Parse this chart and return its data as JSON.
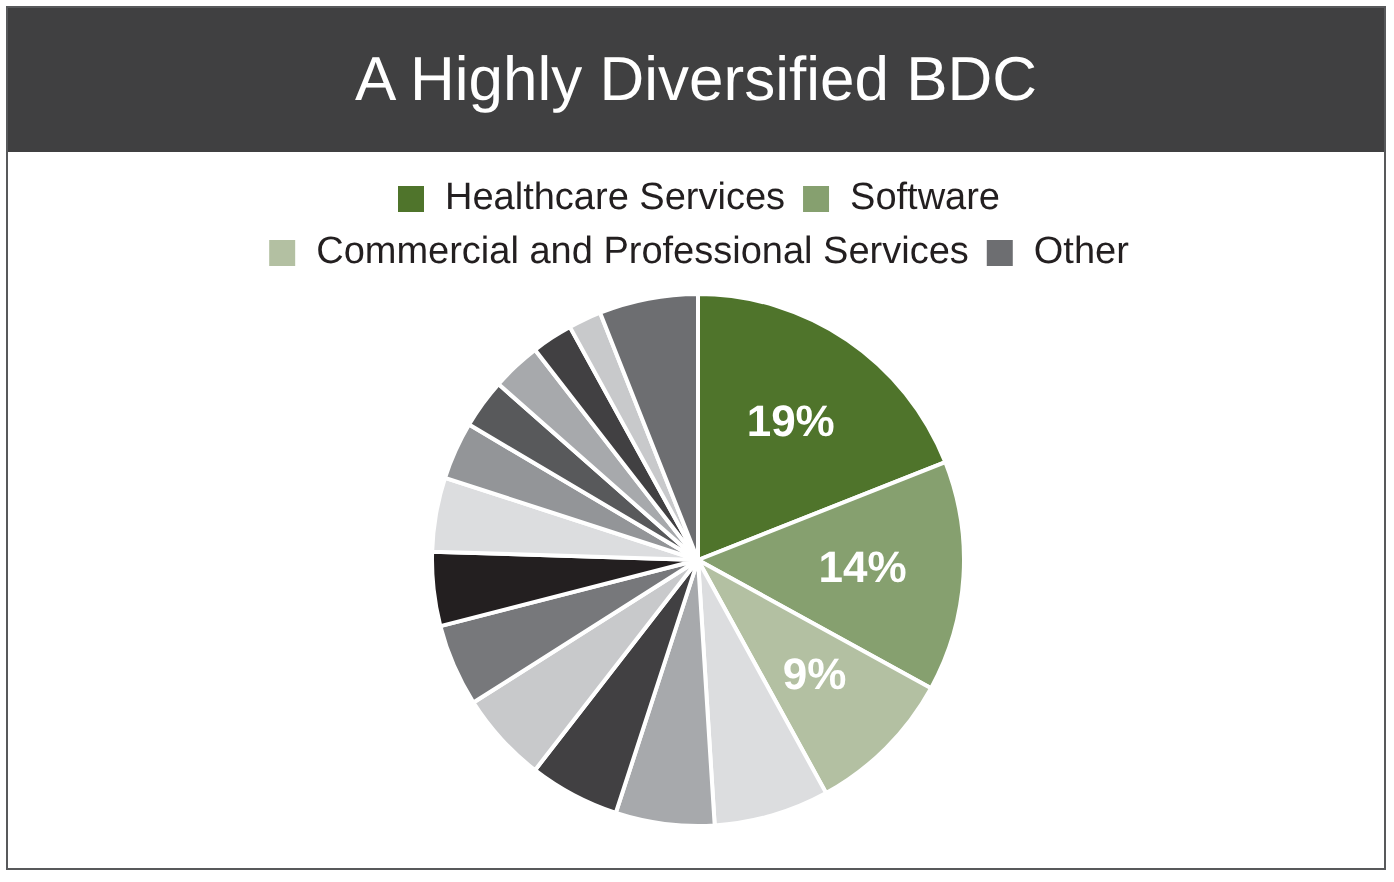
{
  "chart_data": {
    "type": "pie",
    "title": "A Highly Diversified BDC",
    "categories": [
      "Healthcare Services",
      "Software",
      "Commercial and Professional Services",
      null,
      null,
      null,
      null,
      null,
      null,
      null,
      null,
      null,
      null,
      null,
      null,
      "Other"
    ],
    "values": [
      19,
      14,
      9,
      7,
      6,
      5.5,
      5.5,
      5,
      4.5,
      4.5,
      3.5,
      3,
      3,
      2.5,
      2,
      6
    ],
    "colors": [
      "#4f742b",
      "#86a06f",
      "#b3c0a2",
      "#dcdddf",
      "#a7a9ac",
      "#414042",
      "#c8c9cb",
      "#77787b",
      "#231f20",
      "#dcdddf",
      "#939598",
      "#58595b",
      "#a7a9ac",
      "#414042",
      "#c8c9cb",
      "#6d6e71"
    ],
    "value_labels": [
      "19%",
      "14%",
      "9%",
      null,
      null,
      null,
      null,
      null,
      null,
      null,
      null,
      null,
      null,
      null,
      null,
      null
    ],
    "legend": "top"
  }
}
